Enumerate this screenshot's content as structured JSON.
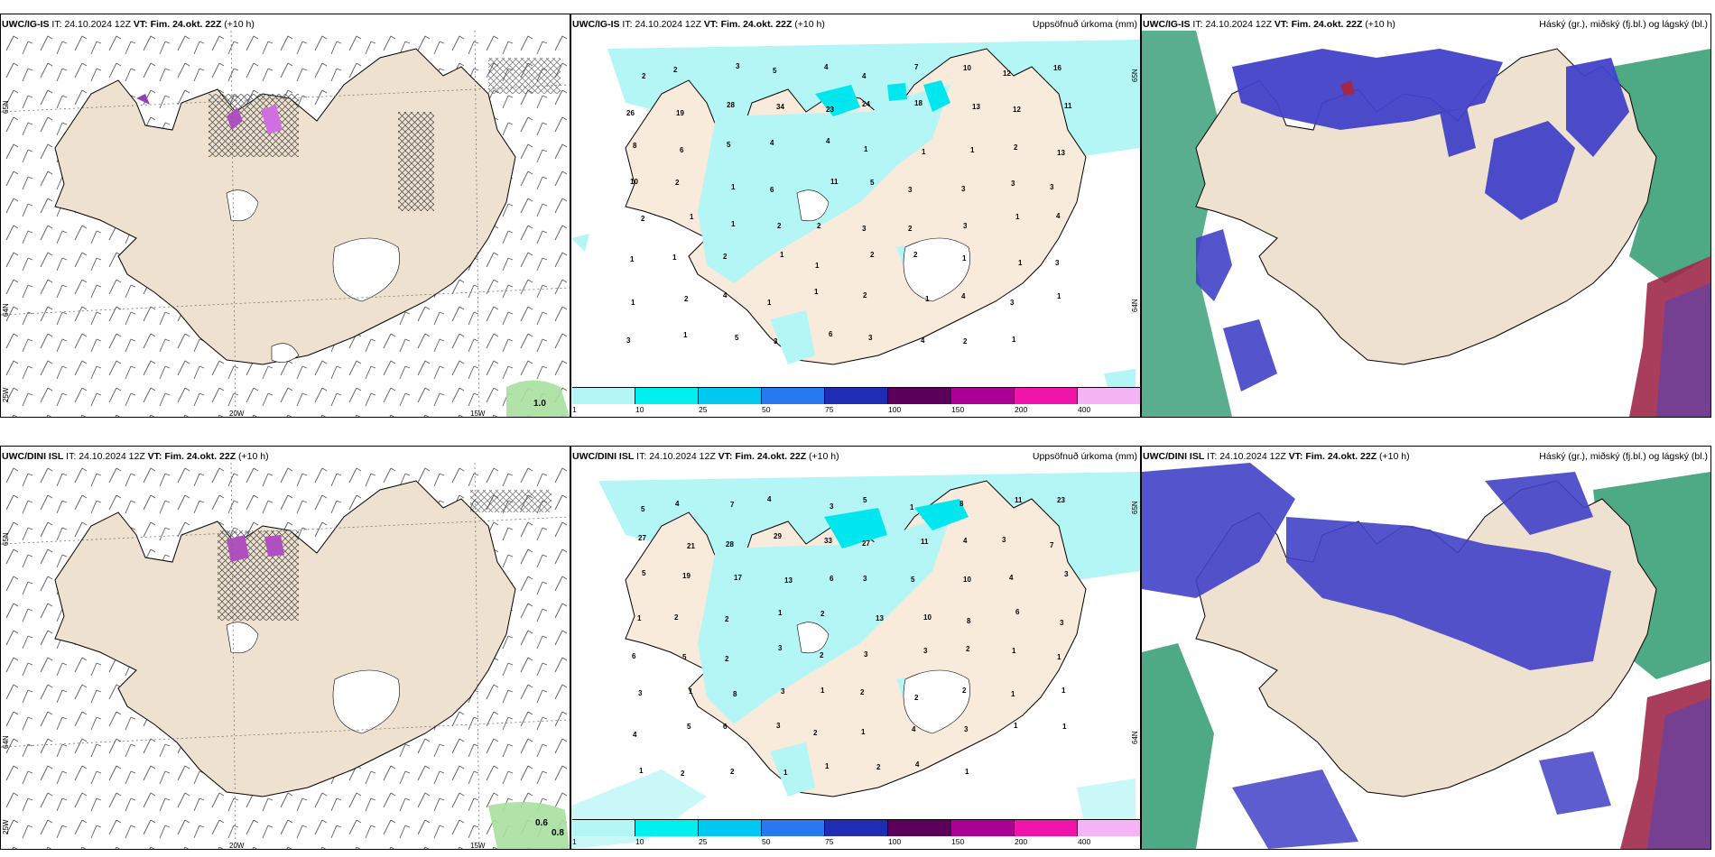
{
  "panels": [
    {
      "id": "top-left",
      "model": "UWC/IG-IS",
      "it": "24.10.2024 12Z",
      "vt_label": "VT:",
      "vt": "Fim. 24.okt. 22Z",
      "step": "(+10 h)",
      "title_right": "",
      "lat_labels": [
        "65N",
        "64N",
        "25W"
      ],
      "lon_labels": [
        "20W",
        "15W"
      ],
      "value_labels": [
        "1.0"
      ]
    },
    {
      "id": "top-middle",
      "model": "UWC/IG-IS",
      "it": "24.10.2024 12Z",
      "vt_label": "VT:",
      "vt": "Fim. 24.okt. 22Z",
      "step": "(+10 h)",
      "title_right": "Uppsöfnuð úrkoma (mm)",
      "lat_labels": [
        "65N",
        "64N"
      ],
      "values": [
        "2",
        "2",
        "3",
        "5",
        "4",
        "4",
        "7",
        "10",
        "12",
        "16",
        "26",
        "19",
        "28",
        "34",
        "23",
        "24",
        "18",
        "13",
        "12",
        "11",
        "8",
        "6",
        "5",
        "4",
        "4",
        "1",
        "1",
        "1",
        "2",
        "13",
        "10",
        "2",
        "1",
        "6",
        "11",
        "5",
        "3",
        "3",
        "3",
        "3",
        "2",
        "1",
        "1",
        "2",
        "2",
        "3",
        "2",
        "3",
        "1",
        "4",
        "1",
        "1",
        "2",
        "1",
        "1",
        "2",
        "2",
        "1",
        "1",
        "3",
        "1",
        "2",
        "4",
        "1",
        "1",
        "2",
        "1",
        "4",
        "3",
        "1",
        "3",
        "1",
        "5",
        "3",
        "6",
        "3",
        "4",
        "2",
        "1"
      ]
    },
    {
      "id": "top-right",
      "model": "UWC/IG-IS",
      "it": "24.10.2024 12Z",
      "vt_label": "VT:",
      "vt": "Fim. 24.okt. 22Z",
      "step": "(+10 h)",
      "title_right": "Háský (gr.), miðský (fj.bl.) og lágský (bl.)"
    },
    {
      "id": "bottom-left",
      "model": "UWC/DINI ISL",
      "it": "24.10.2024 12Z",
      "vt_label": "VT:",
      "vt": "Fim. 24.okt. 22Z",
      "step": "(+10 h)",
      "title_right": "",
      "lat_labels": [
        "65N",
        "64N",
        "25W"
      ],
      "lon_labels": [
        "20W",
        "15W"
      ],
      "value_labels": [
        "0.6",
        "0.8"
      ]
    },
    {
      "id": "bottom-middle",
      "model": "UWC/DINI ISL",
      "it": "24.10.2024 12Z",
      "vt_label": "VT:",
      "vt": "Fim. 24.okt. 22Z",
      "step": "(+10 h)",
      "title_right": "Uppsöfnuð úrkoma (mm)",
      "lat_labels": [
        "65N",
        "64N"
      ],
      "values": [
        "5",
        "4",
        "7",
        "4",
        "3",
        "5",
        "1",
        "8",
        "11",
        "23",
        "27",
        "21",
        "28",
        "29",
        "33",
        "27",
        "11",
        "4",
        "3",
        "7",
        "5",
        "19",
        "17",
        "13",
        "6",
        "3",
        "5",
        "10",
        "4",
        "3",
        "1",
        "2",
        "2",
        "1",
        "2",
        "13",
        "10",
        "8",
        "6",
        "3",
        "6",
        "5",
        "2",
        "3",
        "2",
        "3",
        "3",
        "2",
        "1",
        "1",
        "3",
        "1",
        "8",
        "3",
        "1",
        "2",
        "2",
        "2",
        "1",
        "1",
        "4",
        "5",
        "6",
        "3",
        "2",
        "1",
        "4",
        "3",
        "1",
        "1",
        "1",
        "2",
        "2",
        "1",
        "1",
        "2",
        "4",
        "1"
      ]
    },
    {
      "id": "bottom-right",
      "model": "UWC/DINI ISL",
      "it": "24.10.2024 12Z",
      "vt_label": "VT:",
      "vt": "Fim. 24.okt. 22Z",
      "step": "(+10 h)",
      "title_right": "Háský (gr.), miðský (fj.bl.) og lágský (bl.)"
    }
  ],
  "colorbar": {
    "colors": [
      "#b4f5f5",
      "#00f0f0",
      "#00c8f0",
      "#2878f0",
      "#1e2db4",
      "#5a005a",
      "#aa0096",
      "#f014aa",
      "#f5b4f5"
    ],
    "ticks": [
      "1",
      "10",
      "25",
      "50",
      "75",
      "100",
      "150",
      "200",
      "400"
    ]
  },
  "colors": {
    "land": "#efe1d0",
    "precip_light": "#b4f5f5",
    "precip_mid": "#00e6ee",
    "cloud_low": "#4141c8",
    "cloud_high": "#2f9a70",
    "cloud_mid_red": "#a0284a"
  }
}
